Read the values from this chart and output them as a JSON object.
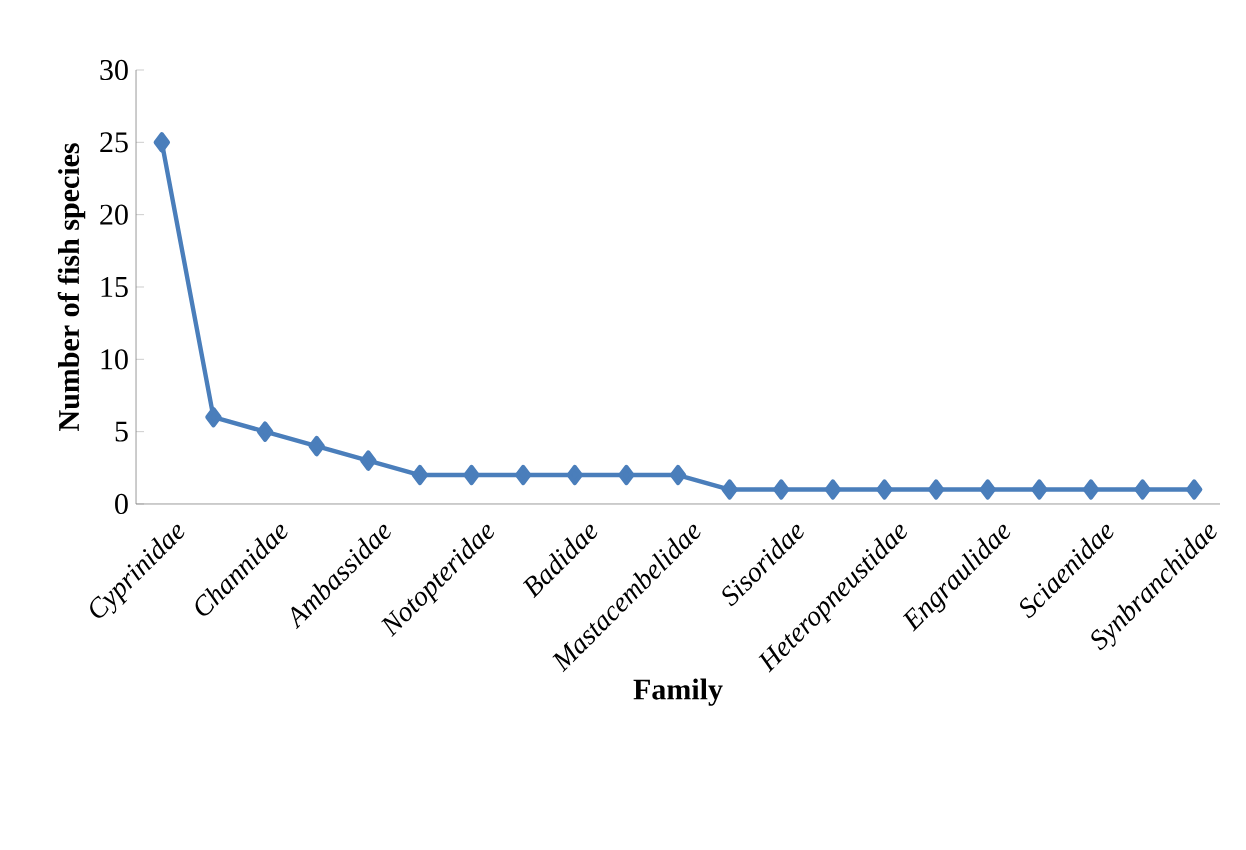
{
  "chart_data": {
    "type": "line",
    "xlabel": "Family",
    "ylabel": "Number of fish species",
    "categories": [
      "Cyprinidae",
      null,
      "Channidae",
      null,
      "Ambassidae",
      null,
      "Notopteridae",
      null,
      "Badidae",
      null,
      "Mastacembelidae",
      null,
      "Sisoridae",
      null,
      "Heteropneustidae",
      null,
      "Engraulidae",
      null,
      "Sciaenidae",
      null,
      "Synbranchidae"
    ],
    "values": [
      25,
      6,
      5,
      4,
      3,
      2,
      2,
      2,
      2,
      2,
      2,
      1,
      1,
      1,
      1,
      1,
      1,
      1,
      1,
      1,
      1
    ],
    "color": "#4a7ebb",
    "marker": "diamond",
    "ylim": [
      0,
      30
    ],
    "yticks": [
      0,
      5,
      10,
      15,
      20,
      25,
      30
    ]
  }
}
